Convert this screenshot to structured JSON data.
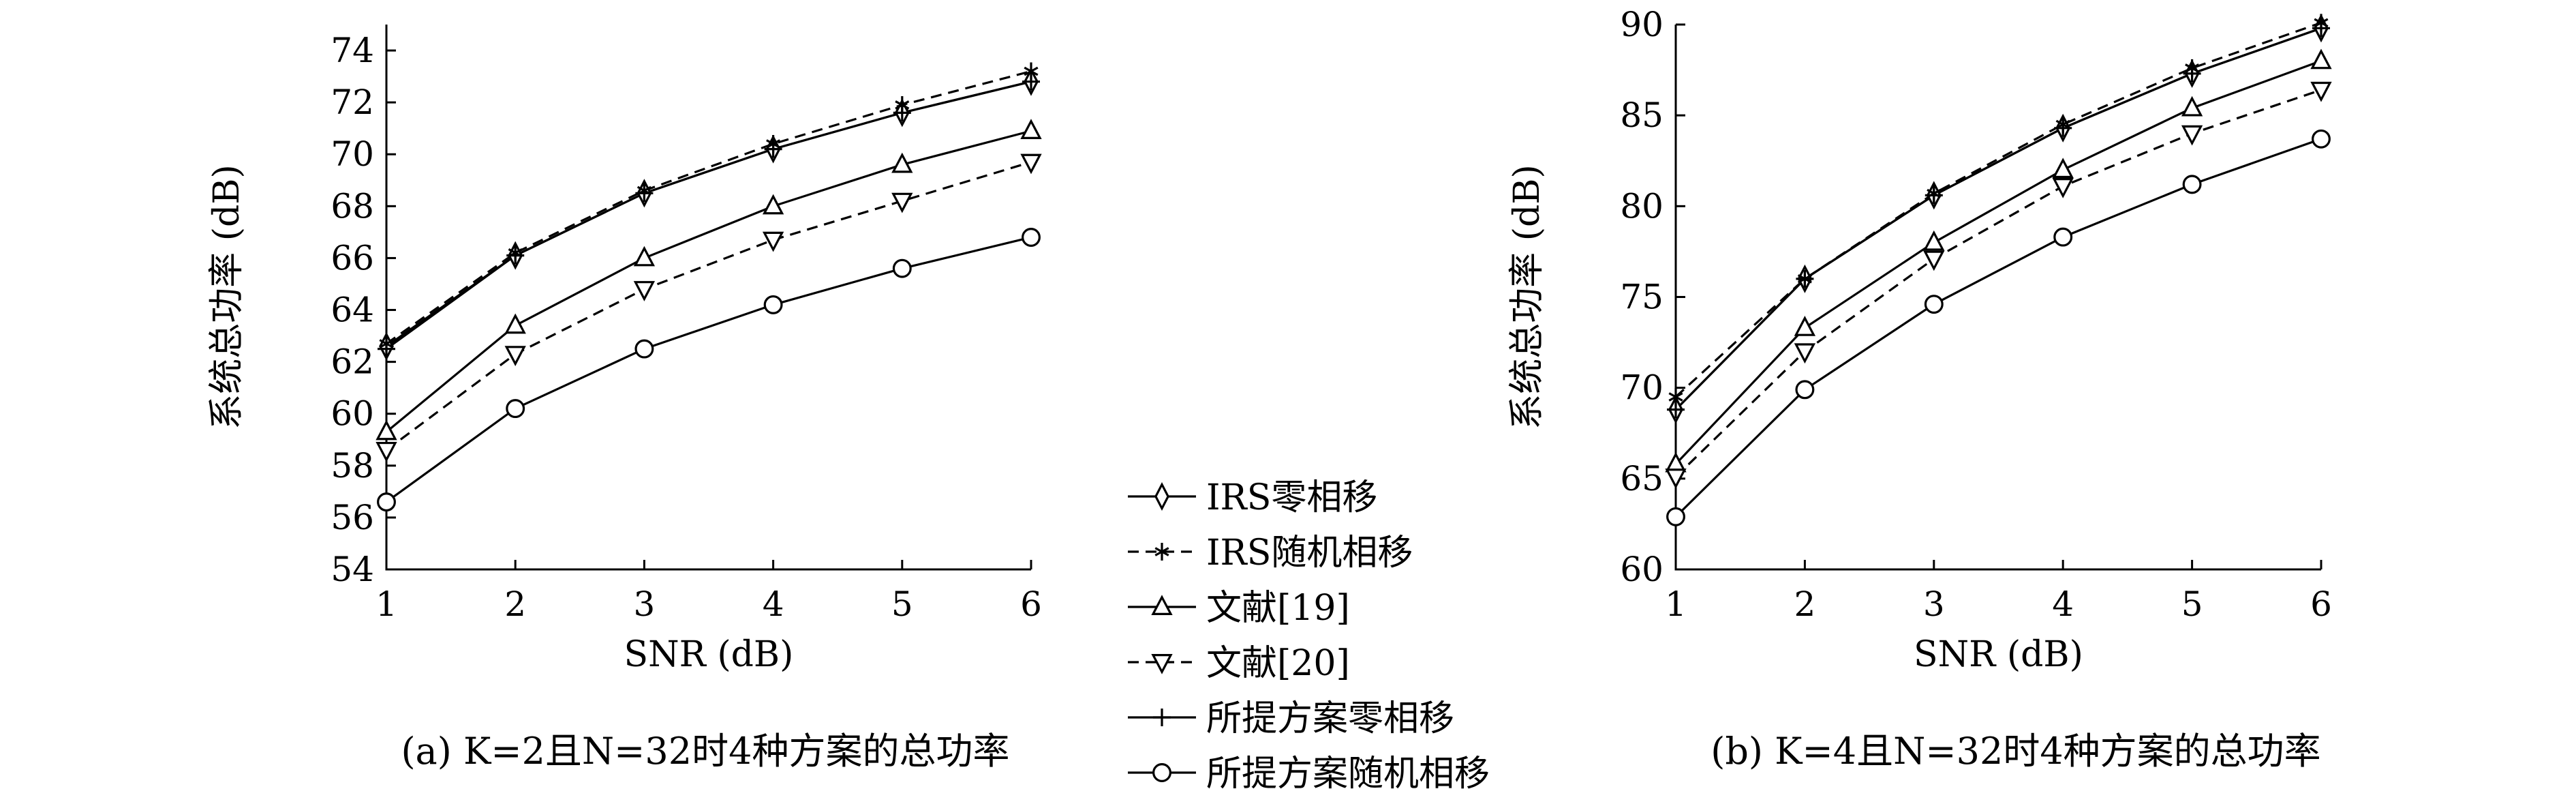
{
  "chart_data": [
    {
      "type": "line",
      "caption": "(a) K=2且N=32时4种方案的总功率",
      "xlabel": "SNR (dB)",
      "ylabel": "系统总功率 (dB)",
      "x": [
        1,
        2,
        3,
        4,
        5,
        6
      ],
      "xticks": [
        "1",
        "2",
        "3",
        "4",
        "5",
        "6"
      ],
      "yticks": [
        "54",
        "56",
        "58",
        "60",
        "62",
        "64",
        "66",
        "68",
        "70",
        "72",
        "74"
      ],
      "xlim": [
        1,
        6
      ],
      "ylim": [
        54,
        75
      ],
      "grid": false,
      "series": [
        {
          "name": "IRS零相移",
          "values": [
            62.6,
            66.1,
            68.5,
            70.2,
            71.6,
            72.8
          ],
          "line_style": "solid",
          "marker": "diamond"
        },
        {
          "name": "IRS随机相移",
          "values": [
            62.7,
            66.2,
            68.6,
            70.4,
            71.9,
            73.2
          ],
          "line_style": "dashed",
          "marker": "asterisk"
        },
        {
          "name": "文献[19]",
          "values": [
            59.3,
            63.4,
            66.0,
            68.0,
            69.6,
            70.9
          ],
          "line_style": "solid",
          "marker": "triangle-up"
        },
        {
          "name": "文献[20]",
          "values": [
            58.6,
            62.3,
            64.8,
            66.7,
            68.2,
            69.7
          ],
          "line_style": "dashed",
          "marker": "triangle-down"
        },
        {
          "name": "所提方案零相移",
          "values": [
            62.5,
            66.1,
            68.5,
            70.2,
            71.6,
            72.8
          ],
          "line_style": "solid",
          "marker": "plus"
        },
        {
          "name": "所提方案随机相移",
          "values": [
            56.6,
            60.2,
            62.5,
            64.2,
            65.6,
            66.8
          ],
          "line_style": "solid",
          "marker": "circle"
        }
      ]
    },
    {
      "type": "line",
      "caption": "(b) K=4且N=32时4种方案的总功率",
      "xlabel": "SNR (dB)",
      "ylabel": "系统总功率 (dB)",
      "x": [
        1,
        2,
        3,
        4,
        5,
        6
      ],
      "xticks": [
        "1",
        "2",
        "3",
        "4",
        "5",
        "6"
      ],
      "yticks": [
        "60",
        "65",
        "70",
        "75",
        "80",
        "85",
        "90"
      ],
      "xlim": [
        1,
        6
      ],
      "ylim": [
        60,
        90
      ],
      "grid": false,
      "series": [
        {
          "name": "IRS零相移",
          "values": [
            68.8,
            76.0,
            80.6,
            84.3,
            87.3,
            89.8
          ],
          "line_style": "solid",
          "marker": "diamond"
        },
        {
          "name": "IRS随机相移",
          "values": [
            69.5,
            76.0,
            80.7,
            84.5,
            87.6,
            90.1
          ],
          "line_style": "dashed",
          "marker": "asterisk"
        },
        {
          "name": "文献[19]",
          "values": [
            65.8,
            73.3,
            78.0,
            82.0,
            85.4,
            88.0
          ],
          "line_style": "solid",
          "marker": "triangle-up"
        },
        {
          "name": "文献[20]",
          "values": [
            65.1,
            72.0,
            77.1,
            81.1,
            84.0,
            86.4
          ],
          "line_style": "dashed",
          "marker": "triangle-down"
        },
        {
          "name": "所提方案零相移",
          "values": [
            68.8,
            76.0,
            80.6,
            84.3,
            87.3,
            89.8
          ],
          "line_style": "solid",
          "marker": "plus"
        },
        {
          "name": "所提方案随机相移",
          "values": [
            62.9,
            69.9,
            74.6,
            78.3,
            81.2,
            83.7
          ],
          "line_style": "solid",
          "marker": "circle"
        }
      ]
    }
  ],
  "legend": {
    "placement": "center",
    "items": [
      "IRS零相移",
      "IRS随机相移",
      "文献[19]",
      "文献[20]",
      "所提方案零相移",
      "所提方案随机相移"
    ]
  },
  "colors": {
    "line": "#000000",
    "background": "#ffffff"
  }
}
